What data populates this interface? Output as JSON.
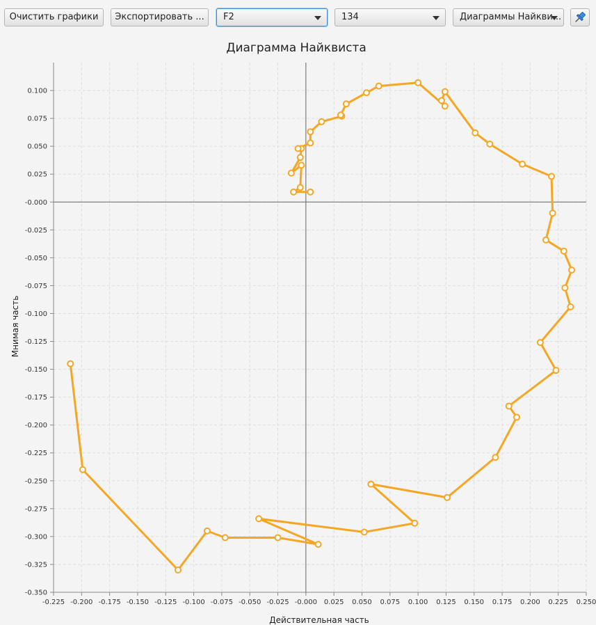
{
  "toolbar": {
    "clear_button": "Очистить графики",
    "export_button": "Экспортировать ...",
    "channel_select": "F2",
    "number_select": "134",
    "view_select": "Диаграммы Найкви..."
  },
  "icons": {
    "pin": "pin-icon",
    "dropdown": "chevron-down-icon"
  },
  "colors": {
    "series": "#f5a623",
    "axis": "#666666",
    "grid": "#dddddd",
    "marker_fill": "#ffffff"
  },
  "chart_data": {
    "type": "line",
    "title": "Диаграмма Найквиста",
    "xlabel": "Действительная часть",
    "ylabel": "Мнимая часть",
    "xlim": [
      -0.225,
      0.25
    ],
    "ylim": [
      -0.35,
      0.12
    ],
    "x_ticks": [
      "-0.225",
      "-0.200",
      "-0.175",
      "-0.150",
      "-0.125",
      "-0.100",
      "-0.075",
      "-0.050",
      "-0.025",
      "-0.000",
      "0.025",
      "0.050",
      "0.075",
      "0.100",
      "0.125",
      "0.150",
      "0.175",
      "0.200",
      "0.225",
      "0.250"
    ],
    "y_ticks": [
      "0.100",
      "0.075",
      "0.050",
      "0.025",
      "-0.000",
      "-0.025",
      "-0.050",
      "-0.075",
      "-0.100",
      "-0.125",
      "-0.150",
      "-0.175",
      "-0.200",
      "-0.225",
      "-0.250",
      "-0.275",
      "-0.300",
      "-0.325",
      "-0.350"
    ],
    "grid": true,
    "x": [
      0.004,
      -0.011,
      -0.005,
      -0.004,
      -0.013,
      -0.005,
      -0.004,
      -0.007,
      0.004,
      0.004,
      0.014,
      0.032,
      0.031,
      0.036,
      0.054,
      0.065,
      0.1,
      0.124,
      0.121,
      0.124,
      0.151,
      0.164,
      0.193,
      0.219,
      0.22,
      0.214,
      0.23,
      0.237,
      0.231,
      0.236,
      0.209,
      0.223,
      0.181,
      0.188,
      0.169,
      0.126,
      0.058,
      0.097,
      0.052,
      -0.042,
      0.011,
      -0.025,
      -0.072,
      -0.088,
      -0.114,
      -0.199,
      -0.21
    ],
    "y": [
      0.009,
      0.009,
      0.013,
      0.033,
      0.026,
      0.04,
      0.048,
      0.048,
      0.053,
      0.063,
      0.072,
      0.077,
      0.078,
      0.088,
      0.098,
      0.104,
      0.107,
      0.086,
      0.091,
      0.099,
      0.062,
      0.052,
      0.034,
      0.023,
      -0.01,
      -0.034,
      -0.044,
      -0.061,
      -0.077,
      -0.094,
      -0.126,
      -0.151,
      -0.183,
      -0.193,
      -0.229,
      -0.265,
      -0.253,
      -0.288,
      -0.296,
      -0.284,
      -0.307,
      -0.301,
      -0.301,
      -0.295,
      -0.33,
      -0.24,
      -0.145
    ]
  }
}
